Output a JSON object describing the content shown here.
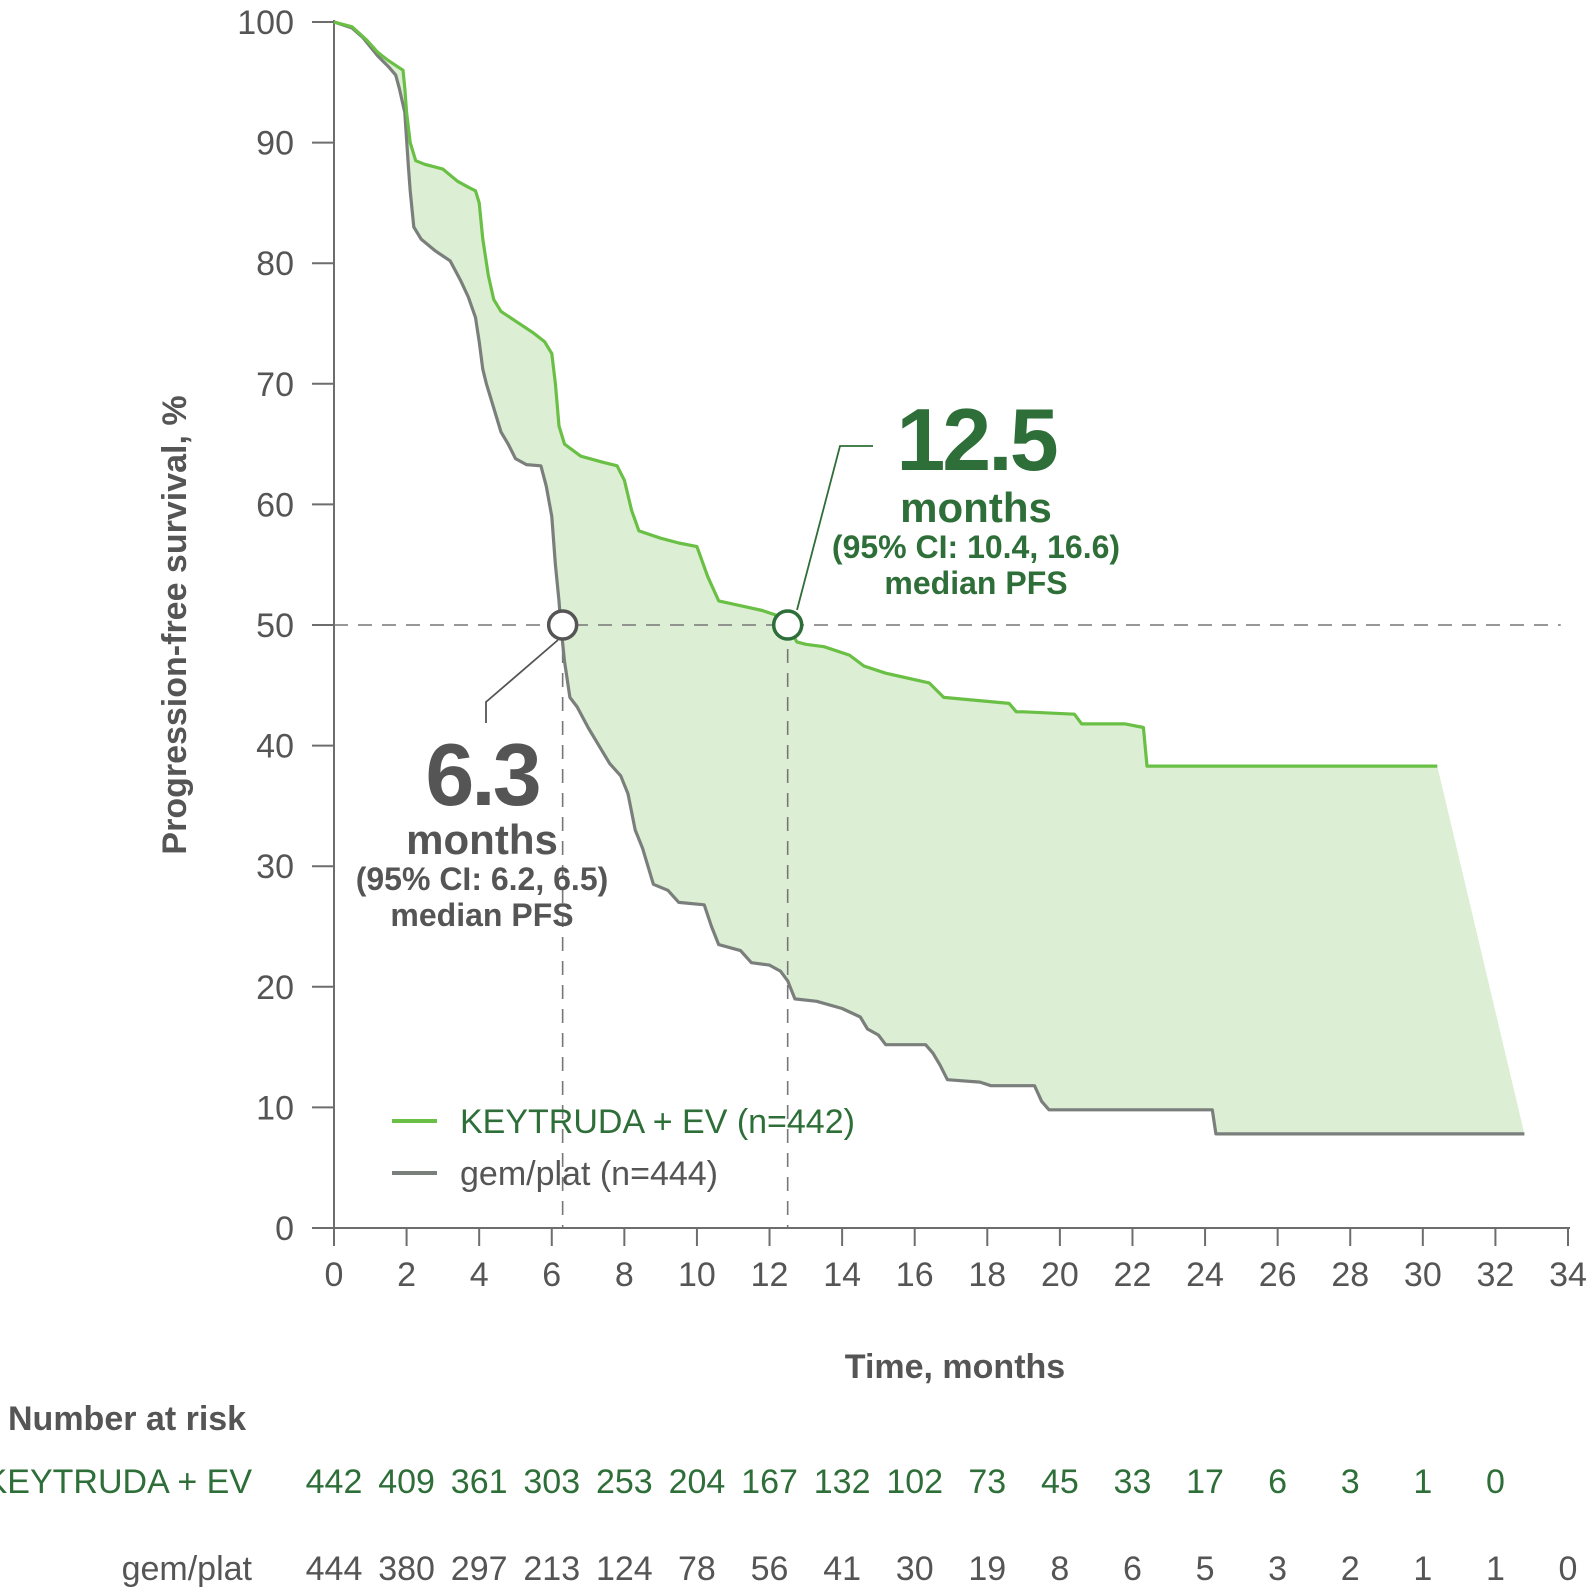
{
  "colors": {
    "keytruda": "#6abf45",
    "keytruda_dark": "#2e6e38",
    "gem": "#7a7f7c",
    "gem_dark": "#555555",
    "fill": "#dcefd4",
    "axis": "#6d6d6d"
  },
  "chart_data": {
    "type": "line",
    "subtype": "kaplan-meier",
    "title": "",
    "xlabel": "Time, months",
    "ylabel": "Progression-free survival, %",
    "xlim": [
      0,
      34
    ],
    "ylim": [
      0,
      100
    ],
    "xticks": [
      "0",
      "2",
      "4",
      "6",
      "8",
      "10",
      "12",
      "14",
      "16",
      "18",
      "20",
      "22",
      "24",
      "26",
      "28",
      "30",
      "32",
      "34"
    ],
    "yticks": [
      "0",
      "10",
      "20",
      "30",
      "40",
      "50",
      "60",
      "70",
      "80",
      "90",
      "100"
    ],
    "reference_line_y": 50,
    "fill_between_series": true,
    "series": [
      {
        "name": "KEYTRUDA + EV (n=442)",
        "color": "#6abf45",
        "points": [
          [
            0,
            100
          ],
          [
            0.5,
            99.6
          ],
          [
            0.9,
            98.5
          ],
          [
            1.2,
            97.5
          ],
          [
            1.5,
            96.8
          ],
          [
            1.8,
            96.2
          ],
          [
            1.9,
            96
          ],
          [
            1.95,
            94.5
          ],
          [
            2.0,
            92.5
          ],
          [
            2.1,
            90
          ],
          [
            2.25,
            88.5
          ],
          [
            2.5,
            88.2
          ],
          [
            3.0,
            87.8
          ],
          [
            3.4,
            86.8
          ],
          [
            3.7,
            86.3
          ],
          [
            3.9,
            86
          ],
          [
            4.0,
            85
          ],
          [
            4.1,
            82
          ],
          [
            4.25,
            79
          ],
          [
            4.4,
            77
          ],
          [
            4.6,
            76
          ],
          [
            5.0,
            75.2
          ],
          [
            5.5,
            74.2
          ],
          [
            5.8,
            73.5
          ],
          [
            6.0,
            72.5
          ],
          [
            6.1,
            70
          ],
          [
            6.2,
            66.5
          ],
          [
            6.35,
            65
          ],
          [
            6.8,
            64
          ],
          [
            7.4,
            63.5
          ],
          [
            7.8,
            63.2
          ],
          [
            8.0,
            62
          ],
          [
            8.2,
            59.5
          ],
          [
            8.4,
            57.8
          ],
          [
            9.0,
            57.2
          ],
          [
            9.5,
            56.8
          ],
          [
            10.0,
            56.5
          ],
          [
            10.3,
            54
          ],
          [
            10.6,
            52
          ],
          [
            11.2,
            51.6
          ],
          [
            11.8,
            51.2
          ],
          [
            12.2,
            50.8
          ],
          [
            12.5,
            50
          ],
          [
            12.75,
            48.6
          ],
          [
            13.0,
            48.4
          ],
          [
            13.5,
            48.2
          ],
          [
            14.2,
            47.5
          ],
          [
            14.6,
            46.6
          ],
          [
            15.2,
            46
          ],
          [
            16.4,
            45.2
          ],
          [
            16.8,
            44
          ],
          [
            18.6,
            43.5
          ],
          [
            18.8,
            42.8
          ],
          [
            19.0,
            42.8
          ],
          [
            20.4,
            42.6
          ],
          [
            20.6,
            41.8
          ],
          [
            21.8,
            41.8
          ],
          [
            22.3,
            41.5
          ],
          [
            22.4,
            38.3
          ],
          [
            30.4,
            38.3
          ]
        ]
      },
      {
        "name": "gem/plat (n=444)",
        "color": "#7a7f7c",
        "points": [
          [
            0,
            100
          ],
          [
            0.5,
            99.5
          ],
          [
            0.8,
            98.7
          ],
          [
            1.2,
            97.2
          ],
          [
            1.5,
            96.3
          ],
          [
            1.7,
            95.6
          ],
          [
            1.8,
            94.5
          ],
          [
            1.95,
            92.5
          ],
          [
            2.05,
            88
          ],
          [
            2.1,
            86
          ],
          [
            2.2,
            83
          ],
          [
            2.4,
            82
          ],
          [
            2.8,
            81
          ],
          [
            3.2,
            80.2
          ],
          [
            3.5,
            78.5
          ],
          [
            3.7,
            77.2
          ],
          [
            3.9,
            75.5
          ],
          [
            4.0,
            73.5
          ],
          [
            4.1,
            71.2
          ],
          [
            4.2,
            70
          ],
          [
            4.4,
            68
          ],
          [
            4.6,
            66
          ],
          [
            4.8,
            65
          ],
          [
            5.0,
            63.8
          ],
          [
            5.3,
            63.3
          ],
          [
            5.7,
            63.2
          ],
          [
            5.85,
            61.5
          ],
          [
            6.0,
            59
          ],
          [
            6.1,
            55
          ],
          [
            6.2,
            52
          ],
          [
            6.25,
            50
          ],
          [
            6.35,
            47
          ],
          [
            6.5,
            44
          ],
          [
            6.7,
            43.2
          ],
          [
            7.0,
            41.5
          ],
          [
            7.3,
            40
          ],
          [
            7.6,
            38.5
          ],
          [
            7.9,
            37.5
          ],
          [
            8.1,
            36
          ],
          [
            8.3,
            33
          ],
          [
            8.5,
            31.5
          ],
          [
            8.8,
            28.5
          ],
          [
            9.2,
            28
          ],
          [
            9.5,
            27
          ],
          [
            10.2,
            26.8
          ],
          [
            10.4,
            25
          ],
          [
            10.6,
            23.5
          ],
          [
            11.2,
            23
          ],
          [
            11.5,
            22
          ],
          [
            12.0,
            21.8
          ],
          [
            12.3,
            21.3
          ],
          [
            12.5,
            20.5
          ],
          [
            12.7,
            19
          ],
          [
            13.3,
            18.8
          ],
          [
            14.0,
            18.2
          ],
          [
            14.5,
            17.5
          ],
          [
            14.7,
            16.5
          ],
          [
            15.0,
            16
          ],
          [
            15.2,
            15.2
          ],
          [
            16.3,
            15.2
          ],
          [
            16.5,
            14.5
          ],
          [
            16.7,
            13.5
          ],
          [
            16.9,
            12.3
          ],
          [
            17.8,
            12.1
          ],
          [
            18.1,
            11.8
          ],
          [
            19.3,
            11.8
          ],
          [
            19.5,
            10.5
          ],
          [
            19.7,
            9.8
          ],
          [
            24.2,
            9.8
          ],
          [
            24.3,
            7.8
          ],
          [
            32.8,
            7.8
          ]
        ]
      }
    ],
    "annotations": [
      {
        "value": "12.5",
        "months": "months",
        "ci": "(95% CI: 10.4, 16.6)",
        "label": "median PFS",
        "x": 12.5,
        "y": 50,
        "series": "KEYTRUDA + EV (n=442)"
      },
      {
        "value": "6.3",
        "months": "months",
        "ci": "(95% CI: 6.2, 6.5)",
        "label": "median PFS",
        "x": 6.3,
        "y": 50,
        "series": "gem/plat (n=444)"
      }
    ],
    "legend_placement": "bottom-left",
    "number_at_risk": {
      "title": "Number at risk",
      "rows": [
        {
          "label": "KEYTRUDA + EV",
          "values": [
            "442",
            "409",
            "361",
            "303",
            "253",
            "204",
            "167",
            "132",
            "102",
            "73",
            "45",
            "33",
            "17",
            "6",
            "3",
            "1",
            "0"
          ]
        },
        {
          "label": "gem/plat",
          "values": [
            "444",
            "380",
            "297",
            "213",
            "124",
            "78",
            "56",
            "41",
            "30",
            "19",
            "8",
            "6",
            "5",
            "3",
            "2",
            "1",
            "1",
            "0"
          ]
        }
      ]
    }
  }
}
